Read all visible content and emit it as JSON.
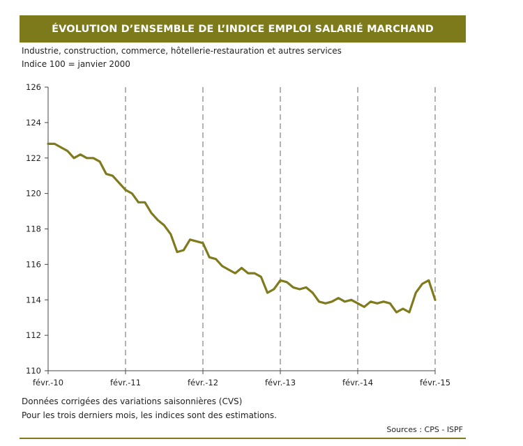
{
  "header": {
    "title": "ÉVOLUTION D’ENSEMBLE DE L’INDICE EMPLOI SALARIÉ MARCHAND",
    "subtitle1": "Industrie, construction, commerce, hôtellerie-restauration et autres services",
    "subtitle2": "Indice 100 = janvier 2000"
  },
  "footer": {
    "note1": "Données corrigées des variations saisonnières (CVS)",
    "note2": "Pour les trois derniers mois, les indices sont des estimations.",
    "source": "Sources : CPS - ISPF"
  },
  "colors": {
    "accent": "#7d7a1b",
    "line": "#7f7a1c",
    "grid": "#8a8a8a"
  },
  "chart_data": {
    "type": "line",
    "title": "ÉVOLUTION D’ENSEMBLE DE L’INDICE EMPLOI SALARIÉ MARCHAND",
    "xlabel": "",
    "ylabel": "",
    "ylim": [
      110,
      126
    ],
    "yticks": [
      110,
      112,
      114,
      116,
      118,
      120,
      122,
      124,
      126
    ],
    "xticks": [
      {
        "label": "févr.-10",
        "index": 0
      },
      {
        "label": "févr.-11",
        "index": 12
      },
      {
        "label": "févr.-12",
        "index": 24
      },
      {
        "label": "févr.-13",
        "index": 36
      },
      {
        "label": "févr.-14",
        "index": 48
      },
      {
        "label": "févr.-15",
        "index": 60
      }
    ],
    "grid": "vertical-dashed",
    "series": [
      {
        "name": "Indice emploi salarié marchand",
        "values": [
          122.8,
          122.8,
          122.6,
          122.4,
          122.0,
          122.2,
          122.0,
          122.0,
          121.8,
          121.1,
          121.0,
          120.6,
          120.2,
          120.0,
          119.5,
          119.5,
          118.9,
          118.5,
          118.2,
          117.7,
          116.7,
          116.8,
          117.4,
          117.3,
          117.2,
          116.4,
          116.3,
          115.9,
          115.7,
          115.5,
          115.8,
          115.5,
          115.5,
          115.3,
          114.4,
          114.6,
          115.1,
          115.0,
          114.7,
          114.6,
          114.7,
          114.4,
          113.9,
          113.8,
          113.9,
          114.1,
          113.9,
          114.0,
          113.8,
          113.6,
          113.9,
          113.8,
          113.9,
          113.8,
          113.3,
          113.5,
          113.3,
          114.4,
          114.9,
          115.1,
          114.0
        ]
      }
    ]
  }
}
